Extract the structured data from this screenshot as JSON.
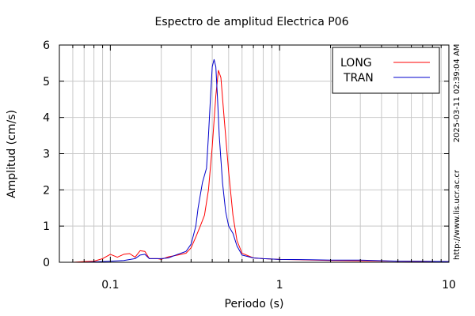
{
  "chart_data": {
    "type": "line",
    "title": "Espectro de amplitud Electrica P06",
    "xlabel": "Periodo (s)",
    "ylabel": "Amplitud (cm/s)",
    "xscale": "log",
    "xlim": [
      0.05,
      10
    ],
    "ylim": [
      0,
      6
    ],
    "x_ticks": [
      0.1,
      1,
      10
    ],
    "x_tick_labels": [
      "0.1",
      "1",
      "10"
    ],
    "y_ticks": [
      0,
      1,
      2,
      3,
      4,
      5,
      6
    ],
    "y_tick_labels": [
      "0",
      "1",
      "2",
      "3",
      "4",
      "5",
      "6"
    ],
    "grid": true,
    "legend_position": "top-right",
    "series": [
      {
        "name": "LONG",
        "color": "#ff0000",
        "points": [
          [
            0.05,
            0.0
          ],
          [
            0.06,
            0.0
          ],
          [
            0.07,
            0.02
          ],
          [
            0.08,
            0.03
          ],
          [
            0.09,
            0.1
          ],
          [
            0.1,
            0.22
          ],
          [
            0.11,
            0.14
          ],
          [
            0.12,
            0.22
          ],
          [
            0.13,
            0.24
          ],
          [
            0.14,
            0.14
          ],
          [
            0.15,
            0.32
          ],
          [
            0.16,
            0.3
          ],
          [
            0.17,
            0.1
          ],
          [
            0.19,
            0.1
          ],
          [
            0.2,
            0.08
          ],
          [
            0.22,
            0.15
          ],
          [
            0.25,
            0.2
          ],
          [
            0.28,
            0.25
          ],
          [
            0.3,
            0.4
          ],
          [
            0.32,
            0.7
          ],
          [
            0.34,
            1.0
          ],
          [
            0.36,
            1.3
          ],
          [
            0.38,
            2.0
          ],
          [
            0.4,
            3.2
          ],
          [
            0.42,
            4.6
          ],
          [
            0.435,
            5.3
          ],
          [
            0.45,
            5.1
          ],
          [
            0.47,
            4.0
          ],
          [
            0.5,
            2.5
          ],
          [
            0.53,
            1.3
          ],
          [
            0.56,
            0.6
          ],
          [
            0.6,
            0.25
          ],
          [
            0.7,
            0.12
          ],
          [
            0.8,
            0.1
          ],
          [
            1.0,
            0.08
          ],
          [
            1.3,
            0.07
          ],
          [
            2.0,
            0.05
          ],
          [
            3.0,
            0.04
          ],
          [
            5.0,
            0.03
          ],
          [
            10.0,
            0.02
          ]
        ]
      },
      {
        "name": "TRAN",
        "color": "#0000cc",
        "points": [
          [
            0.05,
            0.0
          ],
          [
            0.07,
            0.0
          ],
          [
            0.09,
            0.02
          ],
          [
            0.1,
            0.03
          ],
          [
            0.12,
            0.05
          ],
          [
            0.14,
            0.1
          ],
          [
            0.15,
            0.2
          ],
          [
            0.16,
            0.22
          ],
          [
            0.17,
            0.1
          ],
          [
            0.2,
            0.1
          ],
          [
            0.22,
            0.12
          ],
          [
            0.25,
            0.22
          ],
          [
            0.28,
            0.3
          ],
          [
            0.3,
            0.5
          ],
          [
            0.32,
            1.0
          ],
          [
            0.33,
            1.5
          ],
          [
            0.35,
            2.2
          ],
          [
            0.37,
            2.6
          ],
          [
            0.38,
            3.5
          ],
          [
            0.39,
            4.5
          ],
          [
            0.4,
            5.4
          ],
          [
            0.41,
            5.6
          ],
          [
            0.42,
            5.4
          ],
          [
            0.43,
            4.5
          ],
          [
            0.44,
            3.5
          ],
          [
            0.46,
            2.2
          ],
          [
            0.48,
            1.4
          ],
          [
            0.5,
            1.0
          ],
          [
            0.53,
            0.8
          ],
          [
            0.56,
            0.45
          ],
          [
            0.6,
            0.2
          ],
          [
            0.7,
            0.12
          ],
          [
            0.8,
            0.1
          ],
          [
            1.0,
            0.08
          ],
          [
            1.5,
            0.07
          ],
          [
            2.0,
            0.06
          ],
          [
            3.0,
            0.06
          ],
          [
            5.0,
            0.03
          ],
          [
            10.0,
            0.02
          ]
        ]
      }
    ]
  },
  "side_text": {
    "timestamp": "2025-03-11 02:39:04 AM",
    "url": "http://www.lis.ucr.ac.cr"
  }
}
